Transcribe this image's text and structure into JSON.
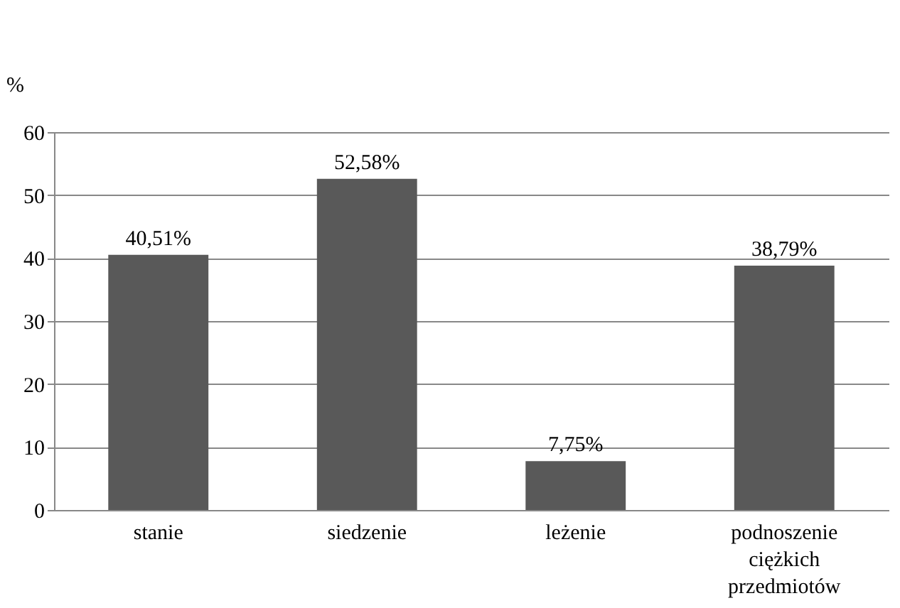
{
  "chart_data": {
    "type": "bar",
    "ylabel": "%",
    "categories": [
      "stanie",
      "siedzenie",
      "leżenie",
      "podnoszenie ciężkich przedmiotów"
    ],
    "values": [
      40.51,
      52.58,
      7.75,
      38.79
    ],
    "value_labels": [
      "40,51%",
      "52,58%",
      "7,75%",
      "38,79%"
    ],
    "color": "#595959",
    "ylim": [
      0,
      60
    ],
    "yticks": [
      0,
      10,
      20,
      30,
      40,
      50,
      60
    ],
    "grid": "y"
  }
}
